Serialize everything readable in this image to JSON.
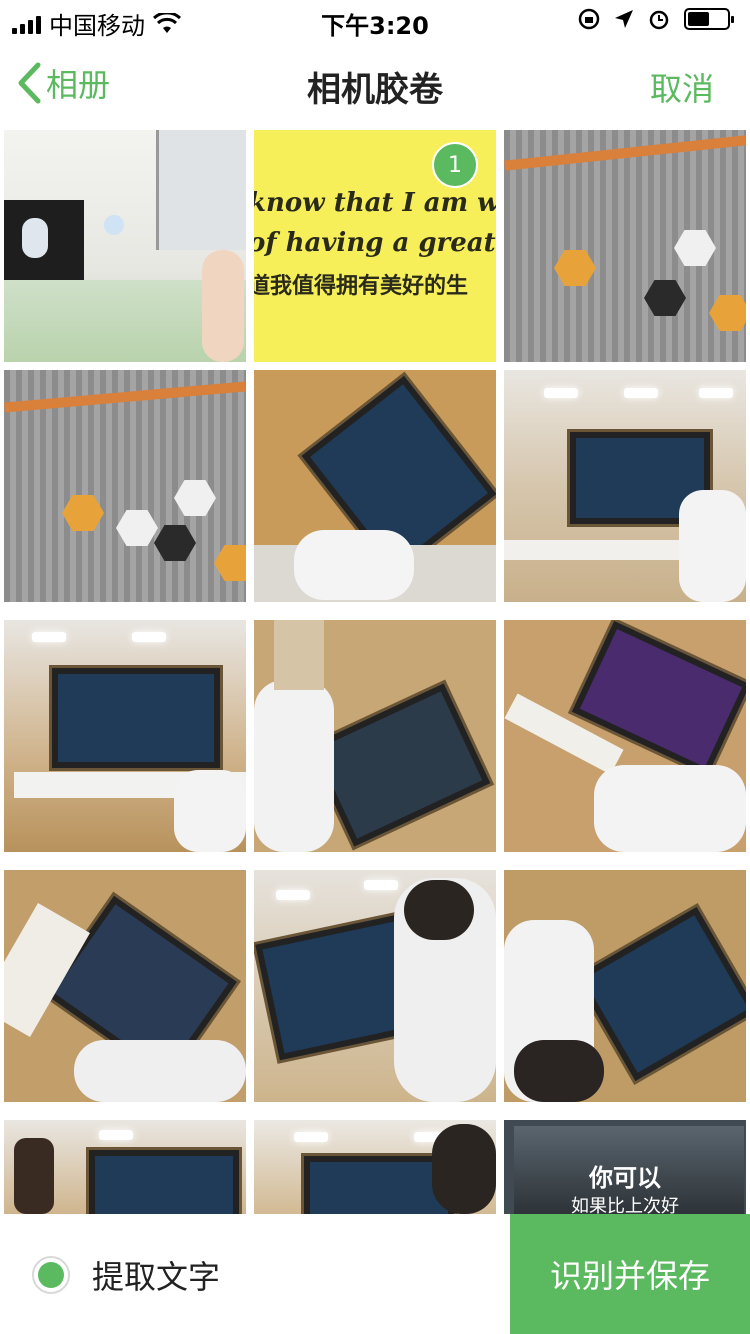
{
  "status_bar": {
    "carrier": "中国移动",
    "time": "下午3:20",
    "battery_level_percent": 55,
    "icons": [
      "signal-icon",
      "wifi-icon",
      "rotation-lock-icon",
      "location-icon",
      "alarm-icon",
      "battery-icon"
    ]
  },
  "nav": {
    "back_label": "相册",
    "title": "相机胶卷",
    "cancel_label": "取消"
  },
  "grid": {
    "selected_badge": "1",
    "quote_line1": "know that I am wort",
    "quote_line2": "of having a great life",
    "quote_line3": "道我值得拥有美好的生",
    "screen_text_1": "你可以",
    "screen_text_2": "如果比上次好"
  },
  "bottom": {
    "extract_label": "提取文字",
    "save_label": "识别并保存"
  },
  "colors": {
    "accent": "#5bba5f"
  }
}
